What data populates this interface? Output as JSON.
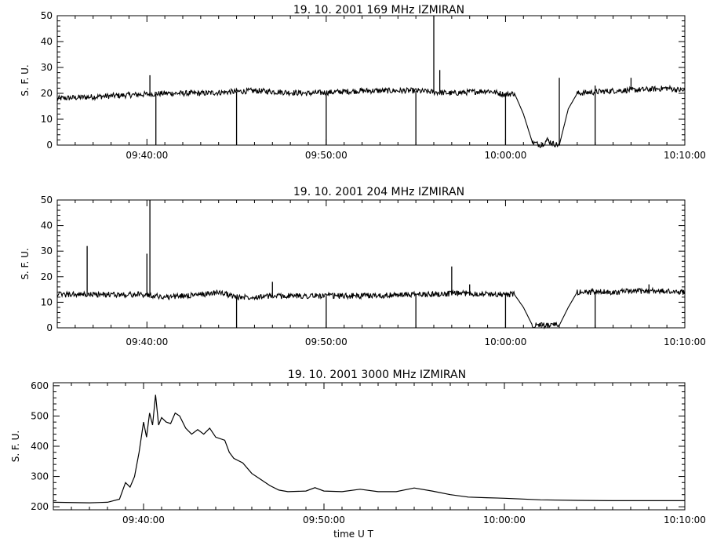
{
  "chart_data": [
    {
      "type": "line",
      "title": "19.  10.  2001    169  MHz    IZMIRAN",
      "xlabel": "",
      "ylabel": "S.  F.  U.",
      "xlim": [
        "09:35:00",
        "10:10:00"
      ],
      "ylim": [
        0,
        50
      ],
      "yticks": [
        0,
        10,
        20,
        30,
        40,
        50
      ],
      "xticks": [
        "09:40:00",
        "09:50:00",
        "10:00:00",
        "10:10:00"
      ],
      "grid": false,
      "series": [
        {
          "baseline": [
            [
              "09:35:00",
              18
            ],
            [
              "09:38:00",
              19
            ],
            [
              "09:41:00",
              20
            ],
            [
              "09:43:00",
              20
            ],
            [
              "09:46:00",
              21
            ],
            [
              "09:49:00",
              20
            ],
            [
              "09:52:00",
              21
            ],
            [
              "09:55:00",
              21
            ],
            [
              "09:57:00",
              20
            ],
            [
              "09:59:00",
              21
            ],
            [
              "10:00:00",
              19.5
            ],
            [
              "10:00:30",
              20
            ],
            [
              "10:01:00",
              12
            ],
            [
              "10:01:30",
              1
            ],
            [
              "10:02:00",
              0
            ],
            [
              "10:02:20",
              2
            ],
            [
              "10:02:40",
              0.5
            ],
            [
              "10:03:00",
              0
            ],
            [
              "10:03:30",
              14
            ],
            [
              "10:04:00",
              20
            ],
            [
              "10:06:00",
              21
            ],
            [
              "10:08:00",
              21.5
            ],
            [
              "10:09:00",
              22
            ],
            [
              "10:10:00",
              21
            ]
          ],
          "spikes": [
            [
              "09:40:10",
              27
            ],
            [
              "09:56:00",
              50
            ],
            [
              "09:56:20",
              29
            ],
            [
              "10:03:00",
              26
            ],
            [
              "10:05:00",
              23
            ],
            [
              "10:07:00",
              26
            ]
          ],
          "dips": [
            [
              "09:40:30",
              0
            ],
            [
              "09:45:00",
              0
            ],
            [
              "09:50:00",
              0
            ],
            [
              "09:55:00",
              0
            ],
            [
              "10:00:00",
              0
            ],
            [
              "10:05:00",
              0
            ]
          ]
        }
      ]
    },
    {
      "type": "line",
      "title": "19.  10.  2001    204  MHz    IZMIRAN",
      "xlabel": "",
      "ylabel": "S.  F.  U.",
      "xlim": [
        "09:35:00",
        "10:10:00"
      ],
      "ylim": [
        0,
        50
      ],
      "yticks": [
        0,
        10,
        20,
        30,
        40,
        50
      ],
      "xticks": [
        "09:40:00",
        "09:50:00",
        "10:00:00",
        "10:10:00"
      ],
      "grid": false,
      "series": [
        {
          "baseline": [
            [
              "09:35:00",
              13
            ],
            [
              "09:38:00",
              13
            ],
            [
              "09:40:00",
              13
            ],
            [
              "09:41:00",
              12
            ],
            [
              "09:43:00",
              13
            ],
            [
              "09:44:00",
              14
            ],
            [
              "09:45:00",
              12
            ],
            [
              "09:48:00",
              12.5
            ],
            [
              "09:52:00",
              12.5
            ],
            [
              "09:55:00",
              13
            ],
            [
              "09:58:00",
              13.5
            ],
            [
              "10:00:00",
              13
            ],
            [
              "10:00:30",
              13
            ],
            [
              "10:01:00",
              8
            ],
            [
              "10:01:30",
              1
            ],
            [
              "10:02:30",
              1
            ],
            [
              "10:03:00",
              1
            ],
            [
              "10:03:30",
              8
            ],
            [
              "10:04:00",
              14
            ],
            [
              "10:06:00",
              14
            ],
            [
              "10:08:00",
              14.5
            ],
            [
              "10:10:00",
              14
            ]
          ],
          "spikes": [
            [
              "09:36:40",
              32
            ],
            [
              "09:40:00",
              29
            ],
            [
              "09:40:10",
              50
            ],
            [
              "09:47:00",
              18
            ],
            [
              "09:57:00",
              24
            ],
            [
              "09:58:00",
              17
            ],
            [
              "10:08:00",
              17
            ]
          ],
          "dips": [
            [
              "09:45:00",
              0
            ],
            [
              "09:50:00",
              0
            ],
            [
              "09:55:00",
              0
            ],
            [
              "10:00:00",
              0
            ],
            [
              "10:05:00",
              0
            ]
          ]
        }
      ]
    },
    {
      "type": "line",
      "title": "19.  10.  2001    3000  MHz    IZMIRAN",
      "xlabel": "time    U  T",
      "ylabel": "S.  F.  U.",
      "xlim": [
        "09:35:00",
        "10:10:00"
      ],
      "ylim": [
        190,
        610
      ],
      "yticks": [
        200,
        300,
        400,
        500,
        600
      ],
      "xticks": [
        "09:40:00",
        "09:50:00",
        "10:00:00",
        "10:10:00"
      ],
      "grid": false,
      "series": [
        {
          "points": [
            [
              "09:35:00",
              215
            ],
            [
              "09:37:00",
              213
            ],
            [
              "09:38:00",
              215
            ],
            [
              "09:38:40",
              225
            ],
            [
              "09:39:00",
              280
            ],
            [
              "09:39:15",
              265
            ],
            [
              "09:39:30",
              300
            ],
            [
              "09:39:45",
              380
            ],
            [
              "09:40:00",
              480
            ],
            [
              "09:40:10",
              430
            ],
            [
              "09:40:20",
              510
            ],
            [
              "09:40:30",
              470
            ],
            [
              "09:40:40",
              570
            ],
            [
              "09:40:50",
              470
            ],
            [
              "09:41:00",
              495
            ],
            [
              "09:41:15",
              480
            ],
            [
              "09:41:30",
              475
            ],
            [
              "09:41:45",
              510
            ],
            [
              "09:42:00",
              500
            ],
            [
              "09:42:20",
              460
            ],
            [
              "09:42:40",
              440
            ],
            [
              "09:43:00",
              455
            ],
            [
              "09:43:20",
              440
            ],
            [
              "09:43:40",
              460
            ],
            [
              "09:44:00",
              430
            ],
            [
              "09:44:30",
              420
            ],
            [
              "09:44:45",
              380
            ],
            [
              "09:45:00",
              360
            ],
            [
              "09:45:30",
              345
            ],
            [
              "09:46:00",
              310
            ],
            [
              "09:46:30",
              290
            ],
            [
              "09:47:00",
              270
            ],
            [
              "09:47:30",
              255
            ],
            [
              "09:48:00",
              250
            ],
            [
              "09:49:00",
              252
            ],
            [
              "09:49:30",
              263
            ],
            [
              "09:50:00",
              252
            ],
            [
              "09:51:00",
              250
            ],
            [
              "09:52:00",
              258
            ],
            [
              "09:53:00",
              250
            ],
            [
              "09:54:00",
              250
            ],
            [
              "09:55:00",
              262
            ],
            [
              "09:56:00",
              252
            ],
            [
              "09:57:00",
              240
            ],
            [
              "09:58:00",
              232
            ],
            [
              "09:59:00",
              230
            ],
            [
              "10:00:00",
              228
            ],
            [
              "10:02:00",
              223
            ],
            [
              "10:04:00",
              221
            ],
            [
              "10:06:00",
              220
            ],
            [
              "10:08:00",
              220
            ],
            [
              "10:10:00",
              220
            ]
          ]
        }
      ]
    }
  ]
}
